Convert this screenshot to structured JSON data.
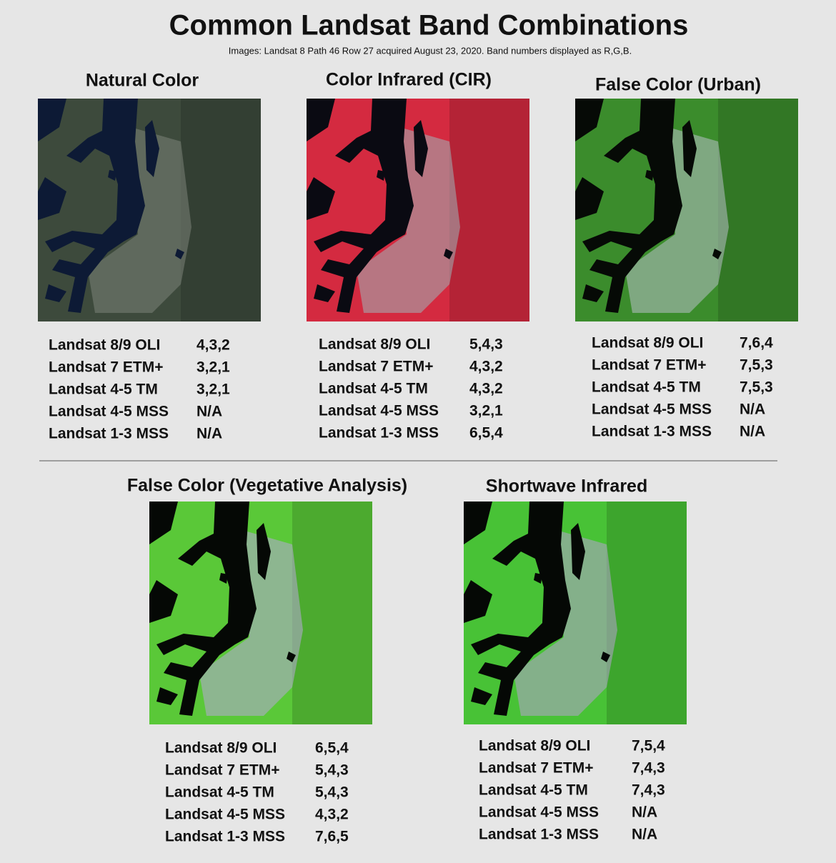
{
  "header": {
    "title": "Common Landsat Band Combinations",
    "subtitle": "Images: Landsat 8 Path 46 Row 27 acquired August 23, 2020. Band numbers displayed as R,G,B."
  },
  "panels": [
    {
      "title": "Natural Color",
      "rows": [
        [
          "Landsat 8/9 OLI",
          "4,3,2"
        ],
        [
          "Landsat 7 ETM+",
          "3,2,1"
        ],
        [
          "Landsat 4-5 TM",
          "3,2,1"
        ],
        [
          "Landsat 4-5 MSS",
          "N/A"
        ],
        [
          "Landsat 1-3 MSS",
          "N/A"
        ]
      ]
    },
    {
      "title": "Color Infrared (CIR)",
      "rows": [
        [
          "Landsat 8/9 OLI",
          "5,4,3"
        ],
        [
          "Landsat 7 ETM+",
          "4,3,2"
        ],
        [
          "Landsat 4-5 TM",
          "4,3,2"
        ],
        [
          "Landsat 4-5 MSS",
          "3,2,1"
        ],
        [
          "Landsat 1-3 MSS",
          "6,5,4"
        ]
      ]
    },
    {
      "title": "False Color (Urban)",
      "rows": [
        [
          "Landsat 8/9 OLI",
          "7,6,4"
        ],
        [
          "Landsat 7 ETM+",
          "7,5,3"
        ],
        [
          "Landsat 4-5 TM",
          "7,5,3"
        ],
        [
          "Landsat 4-5 MSS",
          "N/A"
        ],
        [
          "Landsat 1-3 MSS",
          "N/A"
        ]
      ]
    },
    {
      "title": "False Color (Vegetative Analysis)",
      "rows": [
        [
          "Landsat 8/9 OLI",
          "6,5,4"
        ],
        [
          "Landsat 7 ETM+",
          "5,4,3"
        ],
        [
          "Landsat 4-5 TM",
          "5,4,3"
        ],
        [
          "Landsat 4-5 MSS",
          "4,3,2"
        ],
        [
          "Landsat 1-3 MSS",
          "7,6,5"
        ]
      ]
    },
    {
      "title": "Shortwave Infrared",
      "rows": [
        [
          "Landsat 8/9 OLI",
          "7,5,4"
        ],
        [
          "Landsat 7 ETM+",
          "7,4,3"
        ],
        [
          "Landsat 4-5 TM",
          "7,4,3"
        ],
        [
          "Landsat 4-5 MSS",
          "N/A"
        ],
        [
          "Landsat 1-3 MSS",
          "N/A"
        ]
      ]
    }
  ]
}
